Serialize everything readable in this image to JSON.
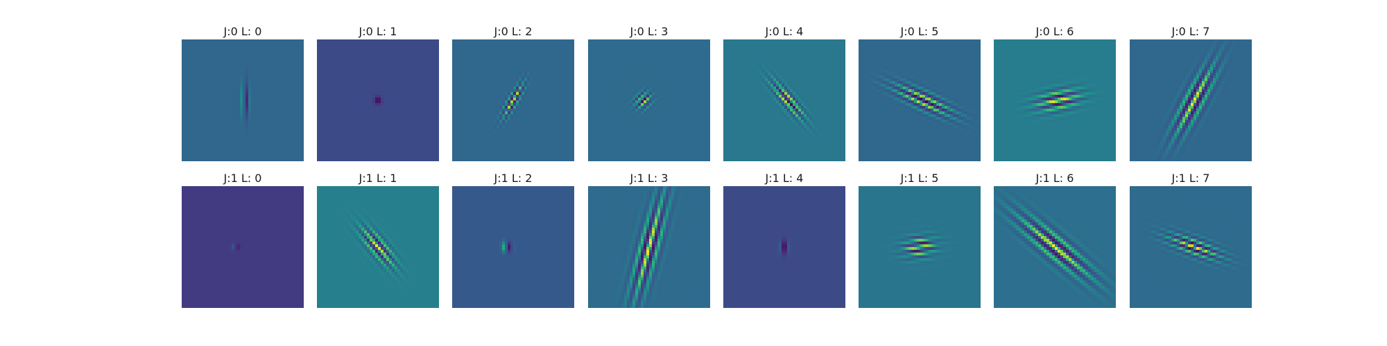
{
  "panels": [
    {
      "title": "J:0 L: 0",
      "bg": "#31668e",
      "angle": 0,
      "sx": 0.018,
      "sy": 0.1,
      "freq": 30,
      "dx": 0.02,
      "dy": 0.0,
      "flip": 1
    },
    {
      "title": "J:0 L: 1",
      "bg": "#3e4b88",
      "angle": 0,
      "sx": 0.022,
      "sy": 0.022,
      "freq": 40,
      "dx": 0.0,
      "dy": 0.0,
      "flip": 1
    },
    {
      "title": "J:0 L: 2",
      "bg": "#31688e",
      "angle": 30,
      "sx": 0.03,
      "sy": 0.11,
      "freq": 25,
      "dx": 0.0,
      "dy": 0.0,
      "flip": 1
    },
    {
      "title": "J:0 L: 3",
      "bg": "#2e6b8e",
      "angle": 45,
      "sx": 0.04,
      "sy": 0.05,
      "freq": 22,
      "dx": -0.05,
      "dy": 0.0,
      "flip": -1
    },
    {
      "title": "J:0 L: 4",
      "bg": "#2a788e",
      "angle": -40,
      "sx": 0.04,
      "sy": 0.14,
      "freq": 20,
      "dx": 0.03,
      "dy": 0.0,
      "flip": -1
    },
    {
      "title": "J:0 L: 5",
      "bg": "#33698f",
      "angle": -65,
      "sx": 0.05,
      "sy": 0.18,
      "freq": 18,
      "dx": 0.03,
      "dy": 0.0,
      "flip": -1
    },
    {
      "title": "J:0 L: 6",
      "bg": "#287d8e",
      "angle": 78,
      "sx": 0.06,
      "sy": 0.13,
      "freq": 16,
      "dx": 0.03,
      "dy": 0.0,
      "flip": 1
    },
    {
      "title": "J:0 L: 7",
      "bg": "#31688e",
      "angle": 28,
      "sx": 0.06,
      "sy": 0.22,
      "freq": 14,
      "dx": 0.03,
      "dy": 0.0,
      "flip": 1
    },
    {
      "title": "J:1 L: 0",
      "bg": "#463c83",
      "angle": 0,
      "sx": 0.018,
      "sy": 0.018,
      "freq": 40,
      "dx": -0.05,
      "dy": 0.0,
      "flip": 1
    },
    {
      "title": "J:1 L: 1",
      "bg": "#267f8e",
      "angle": -40,
      "sx": 0.05,
      "sy": 0.14,
      "freq": 18,
      "dx": 0.0,
      "dy": 0.0,
      "flip": 1
    },
    {
      "title": "J:1 L: 2",
      "bg": "#37598c",
      "angle": 0,
      "sx": 0.025,
      "sy": 0.03,
      "freq": 35,
      "dx": -0.05,
      "dy": 0.0,
      "flip": 1
    },
    {
      "title": "J:1 L: 3",
      "bg": "#2e6b8e",
      "angle": 15,
      "sx": 0.06,
      "sy": 0.3,
      "freq": 14,
      "dx": 0.0,
      "dy": 0.0,
      "flip": 1
    },
    {
      "title": "J:1 L: 4",
      "bg": "#3e4b88",
      "angle": 0,
      "sx": 0.02,
      "sy": 0.04,
      "freq": 35,
      "dx": 0.0,
      "dy": 0.0,
      "flip": 1
    },
    {
      "title": "J:1 L: 5",
      "bg": "#2a768e",
      "angle": 82,
      "sx": 0.06,
      "sy": 0.09,
      "freq": 18,
      "dx": 0.0,
      "dy": 0.0,
      "flip": 1
    },
    {
      "title": "J:1 L: 6",
      "bg": "#2d6f8e",
      "angle": -50,
      "sx": 0.07,
      "sy": 0.26,
      "freq": 13,
      "dx": 0.0,
      "dy": 0.0,
      "flip": 1
    },
    {
      "title": "J:1 L: 7",
      "bg": "#2f6b8e",
      "angle": -70,
      "sx": 0.05,
      "sy": 0.16,
      "freq": 20,
      "dx": 0.03,
      "dy": 0.0,
      "flip": 1
    }
  ]
}
